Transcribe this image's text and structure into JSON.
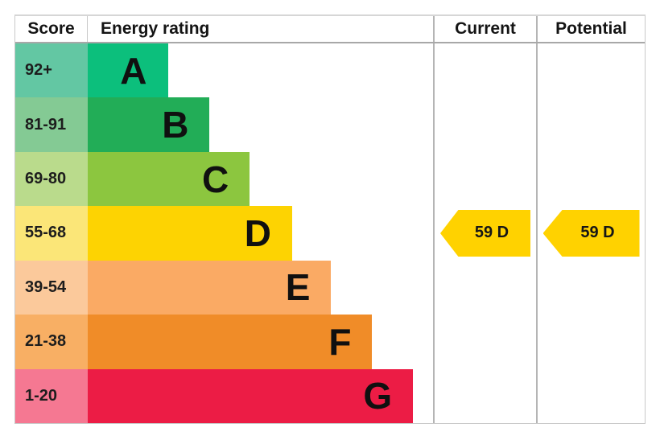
{
  "header": {
    "score": "Score",
    "energy_rating": "Energy rating",
    "current": "Current",
    "potential": "Potential"
  },
  "bands": [
    {
      "letter": "A",
      "score_range": "92+",
      "bar_color": "#0cbf7c",
      "score_tint": "#63c7a3",
      "bar_width_pct": 23.2
    },
    {
      "letter": "B",
      "score_range": "81-91",
      "bar_color": "#22ad57",
      "score_tint": "#84ca94",
      "bar_width_pct": 35.3
    },
    {
      "letter": "C",
      "score_range": "69-80",
      "bar_color": "#8cc63f",
      "score_tint": "#badb8c",
      "bar_width_pct": 46.9
    },
    {
      "letter": "D",
      "score_range": "55-68",
      "bar_color": "#fdd302",
      "score_tint": "#fbe678",
      "bar_width_pct": 59.2
    },
    {
      "letter": "E",
      "score_range": "39-54",
      "bar_color": "#faaa64",
      "score_tint": "#fbc99b",
      "bar_width_pct": 70.5
    },
    {
      "letter": "F",
      "score_range": "21-38",
      "bar_color": "#f08c28",
      "score_tint": "#f8af64",
      "bar_width_pct": 82.4
    },
    {
      "letter": "G",
      "score_range": "1-20",
      "bar_color": "#ec1c45",
      "score_tint": "#f57892",
      "bar_width_pct": 94.2
    }
  ],
  "current": {
    "label": "59 D",
    "value": 59,
    "band": "D",
    "arrow_color": "#ffd200"
  },
  "potential": {
    "label": "59 D",
    "value": 59,
    "band": "D",
    "arrow_color": "#ffd200"
  },
  "chart_data": {
    "type": "bar",
    "title": "EPC energy efficiency rating chart",
    "columns": [
      "Score",
      "Energy rating",
      "Current",
      "Potential"
    ],
    "categories": [
      "A",
      "B",
      "C",
      "D",
      "E",
      "F",
      "G"
    ],
    "score_ranges": [
      "92+",
      "81-91",
      "69-80",
      "55-68",
      "39-54",
      "21-38",
      "1-20"
    ],
    "bar_relative_lengths": [
      1,
      1.5,
      2,
      2.5,
      3,
      3.5,
      4
    ],
    "band_colors": [
      "#0cbf7c",
      "#22ad57",
      "#8cc63f",
      "#fdd302",
      "#faaa64",
      "#f08c28",
      "#ec1c45"
    ],
    "current": {
      "value": 59,
      "band": "D"
    },
    "potential": {
      "value": 59,
      "band": "D"
    },
    "legend": "none",
    "grid": "off"
  }
}
